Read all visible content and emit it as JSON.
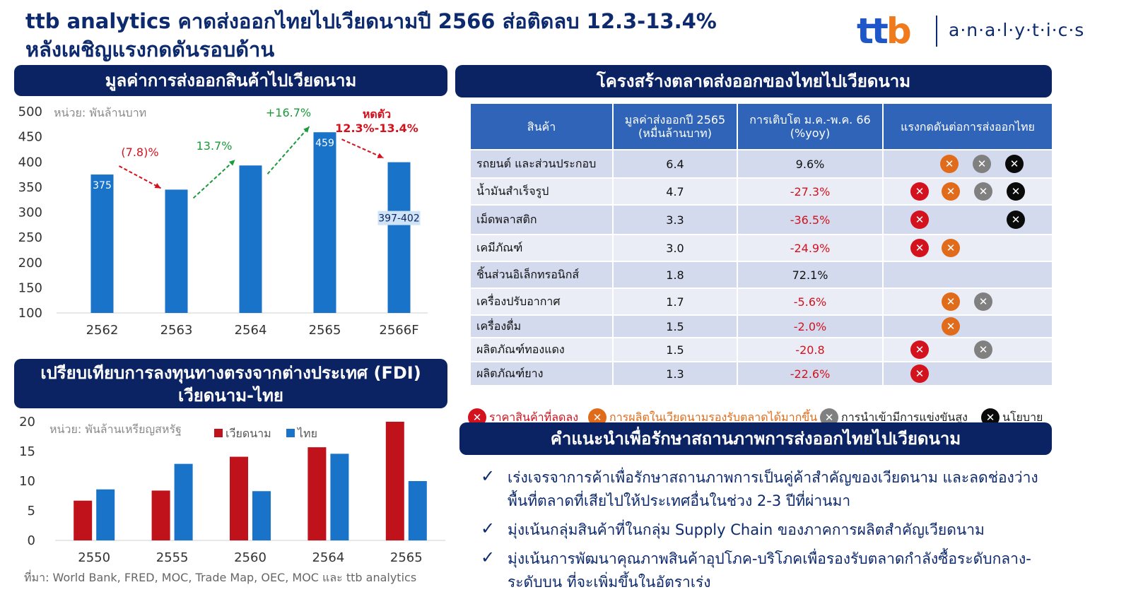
{
  "header": {
    "title_line1": "ttb analytics คาดส่งออกไทยไปเวียดนามปี 2566 ส่อติดลบ 12.3-13.4%",
    "title_line2": "หลังเผชิญแรงกดดันรอบด้าน",
    "logo_text": "ttb",
    "logo_sub": "a·n·a·l·y·t·i·c·s"
  },
  "export_panel": {
    "heading": "มูลค่าการส่งออกสินค้าไปเวียดนาม",
    "unit": "หน่วย: พันล้านบาท"
  },
  "fdi_panel": {
    "heading_line1": "เปรียบเทียบการลงทุนทางตรงจากต่างประเทศ (FDI)",
    "heading_line2": "เวียดนาม-ไทย",
    "unit": "หน่วย: พันล้านเหรียญสหรัฐ"
  },
  "chart_data": [
    {
      "type": "bar",
      "categories": [
        "2562",
        "2563",
        "2564",
        "2565",
        "2566F"
      ],
      "values": [
        375,
        345,
        393,
        459,
        399.5
      ],
      "value_labels": [
        "375",
        "",
        "",
        "459",
        "397-402"
      ],
      "ylim": [
        100,
        500
      ],
      "yticks": [
        100,
        150,
        200,
        250,
        300,
        350,
        400,
        450,
        500
      ],
      "ylabel": "หน่วย: พันล้านบาท",
      "bar_color": "#1873c9",
      "annotations": [
        {
          "text": "(7.8)%",
          "color": "#d3121d",
          "from": 0,
          "to": 1
        },
        {
          "text": "13.7%",
          "color": "#1a9a3a",
          "from": 1,
          "to": 2
        },
        {
          "text": "+16.7%",
          "color": "#1a9a3a",
          "from": 2,
          "to": 3
        },
        {
          "text_line1": "หดตัว",
          "text_line2": "12.3%-13.4%",
          "color": "#d3121d",
          "from": 3,
          "to": 4
        }
      ]
    },
    {
      "type": "bar",
      "categories": [
        "2550",
        "2555",
        "2560",
        "2564",
        "2565"
      ],
      "series": [
        {
          "name": "เวียดนาม",
          "color": "#c0121b",
          "values": [
            6.7,
            8.4,
            14.1,
            15.7,
            20.0
          ]
        },
        {
          "name": "ไทย",
          "color": "#1873c9",
          "values": [
            8.6,
            12.9,
            8.3,
            14.6,
            10.0
          ]
        }
      ],
      "ylim": [
        0,
        20
      ],
      "yticks": [
        0,
        5,
        10,
        15,
        20
      ],
      "ylabel": "หน่วย: พันล้านเหรียญสหรัฐ"
    },
    {
      "type": "table",
      "heading": "โครงสร้างตลาดส่งออกของไทยไปเวียดนาม",
      "columns": [
        "สินค้า",
        "มูลค่าส่งออกปี 2565 (หมื่นล้านบาท)",
        "การเติบโต ม.ค.-พ.ค. 66 (%yoy)",
        "แรงกดดันต่อการส่งออกไทย"
      ],
      "rows": [
        {
          "product": "รถยนต์ และส่วนประกอบ",
          "value": "6.4",
          "growth": "9.6%",
          "negative": false,
          "pressures": [
            "orange",
            "gray",
            "black"
          ]
        },
        {
          "product": "น้ำมันสำเร็จรูป",
          "value": "4.7",
          "growth": "-27.3%",
          "negative": true,
          "pressures": [
            "red",
            "orange",
            "gray",
            "black"
          ]
        },
        {
          "product": "เม็ดพลาสติก",
          "value": "3.3",
          "growth": "-36.5%",
          "negative": true,
          "pressures": [
            "red",
            "black"
          ]
        },
        {
          "product": "เคมีภัณฑ์",
          "value": "3.0",
          "growth": "-24.9%",
          "negative": true,
          "pressures": [
            "red",
            "orange"
          ]
        },
        {
          "product": "ชิ้นส่วนอิเล็กทรอนิกส์",
          "value": "1.8",
          "growth": "72.1%",
          "negative": false,
          "pressures": []
        },
        {
          "product": "เครื่องปรับอากาศ",
          "value": "1.7",
          "growth": "-5.6%",
          "negative": true,
          "pressures": [
            "orange",
            "gray"
          ]
        },
        {
          "product": "เครื่องดื่ม",
          "value": "1.5",
          "growth": "-2.0%",
          "negative": true,
          "pressures": [
            "orange"
          ]
        },
        {
          "product": "ผลิตภัณฑ์ทองแดง",
          "value": "1.5",
          "growth": "-20.8",
          "negative": true,
          "pressures": [
            "red",
            "gray"
          ]
        },
        {
          "product": "ผลิตภัณฑ์ยาง",
          "value": "1.3",
          "growth": "-22.6%",
          "negative": true,
          "pressures": [
            "red"
          ]
        }
      ]
    }
  ],
  "pressure_legend": [
    {
      "key": "red",
      "label": "ราคาสินค้าที่ลดลง",
      "color": "#d3121d"
    },
    {
      "key": "orange",
      "label": "การผลิตในเวียดนามรองรับตลาดได้มากขึ้น",
      "color": "#e06b1a"
    },
    {
      "key": "gray",
      "label": "การนำเข้ามีการแข่งขันสูง",
      "color": "#808080"
    },
    {
      "key": "black",
      "label": "นโยบาย",
      "color": "#0a0a0a"
    }
  ],
  "recommendations": {
    "heading": "คำแนะนำเพื่อรักษาสถานภาพการส่งออกไทยไปเวียดนาม",
    "check_glyph": "✓",
    "items": [
      "เร่งเจรจาการค้าเพื่อรักษาสถานภาพการเป็นคู่ค้าสำคัญของเวียดนาม และลดช่องว่างพื้นที่ตลาดที่เสียไปให้ประเทศอื่นในช่วง 2-3 ปีที่ผ่านมา",
      "มุ่งเน้นกลุ่มสินค้าที่ในกลุ่ม Supply Chain ของภาคการผลิตสำคัญเวียดนาม",
      "มุ่งเน้นการพัฒนาคุณภาพสินค้าอุปโภค-บริโภคเพื่อรองรับตลาดกำลังซื้อระดับกลาง-ระดับบน ที่จะเพิ่มขึ้นในอัตราเร่ง"
    ]
  },
  "source": "ที่มา: World Bank, FRED, MOC, Trade Map, OEC, MOC และ ttb analytics"
}
